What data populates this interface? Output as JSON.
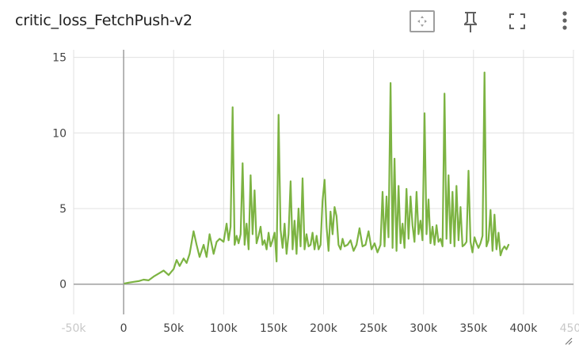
{
  "title": "critic_loss_FetchPush-v2",
  "toolbar": {
    "icons": [
      "fit-domain-icon",
      "pin-icon",
      "fullscreen-icon",
      "more-vert-icon"
    ]
  },
  "colors": {
    "line": "#7cb342",
    "grid": "#e0e0e0",
    "axis": "#9e9e9e"
  },
  "chart_data": {
    "type": "line",
    "title": "",
    "xlabel": "",
    "ylabel": "",
    "xlim": [
      -50000,
      450000
    ],
    "ylim": [
      -2,
      15.5
    ],
    "grid": true,
    "x_ticks": [
      {
        "value": -50000,
        "label": "-50k"
      },
      {
        "value": 0,
        "label": "0"
      },
      {
        "value": 50000,
        "label": "50k"
      },
      {
        "value": 100000,
        "label": "100k"
      },
      {
        "value": 150000,
        "label": "150k"
      },
      {
        "value": 200000,
        "label": "200k"
      },
      {
        "value": 250000,
        "label": "250k"
      },
      {
        "value": 300000,
        "label": "300k"
      },
      {
        "value": 350000,
        "label": "350k"
      },
      {
        "value": 400000,
        "label": "400k"
      },
      {
        "value": 450000,
        "label": "450k"
      }
    ],
    "y_ticks": [
      {
        "value": 0,
        "label": "0"
      },
      {
        "value": 5,
        "label": "5"
      },
      {
        "value": 10,
        "label": "10"
      },
      {
        "value": 15,
        "label": "15"
      }
    ],
    "series": [
      {
        "x": [
          1000,
          5000,
          10000,
          15000,
          20000,
          25000,
          30000,
          35000,
          40000,
          45000,
          50000,
          53000,
          56000,
          60000,
          63000,
          66000,
          70000,
          73000,
          76000,
          80000,
          83000,
          86000,
          90000,
          93000,
          96000,
          100000,
          103000,
          105000,
          107000,
          109000,
          111000,
          113000,
          115000,
          117000,
          119000,
          121000,
          123000,
          125000,
          127000,
          129000,
          131000,
          133000,
          135000,
          137000,
          139000,
          141000,
          143000,
          145000,
          147000,
          149000,
          151000,
          153000,
          155000,
          157000,
          159000,
          161000,
          163000,
          165000,
          167000,
          169000,
          171000,
          173000,
          175000,
          177000,
          179000,
          181000,
          183000,
          185000,
          187000,
          189000,
          191000,
          193000,
          195000,
          197000,
          199000,
          201000,
          203000,
          205000,
          207000,
          209000,
          211000,
          213000,
          215000,
          217000,
          219000,
          221000,
          224000,
          227000,
          230000,
          233000,
          236000,
          239000,
          242000,
          245000,
          248000,
          251000,
          254000,
          257000,
          259000,
          261000,
          263000,
          265000,
          267000,
          269000,
          271000,
          273000,
          275000,
          277000,
          279000,
          281000,
          283000,
          285000,
          287000,
          289000,
          291000,
          293000,
          295000,
          297000,
          299000,
          301000,
          303000,
          305000,
          307000,
          309000,
          311000,
          313000,
          315000,
          317000,
          319000,
          321000,
          323000,
          325000,
          327000,
          329000,
          331000,
          333000,
          335000,
          337000,
          339000,
          341000,
          343000,
          345000,
          347000,
          349000,
          351000,
          353000,
          355000,
          357000,
          359000,
          361000,
          363000,
          365000,
          367000,
          369000,
          371000,
          373000,
          375000,
          377000,
          379000,
          381000,
          383000,
          385000
        ],
        "y": [
          0.05,
          0.1,
          0.15,
          0.2,
          0.3,
          0.25,
          0.5,
          0.7,
          0.9,
          0.6,
          1.0,
          1.6,
          1.2,
          1.7,
          1.4,
          2.0,
          3.5,
          2.6,
          1.8,
          2.6,
          1.8,
          3.3,
          2.0,
          2.8,
          3.0,
          2.8,
          4.0,
          2.9,
          3.8,
          11.7,
          2.6,
          3.2,
          2.7,
          3.3,
          8.0,
          2.6,
          4.0,
          2.3,
          7.2,
          3.3,
          6.2,
          2.7,
          3.2,
          3.8,
          2.6,
          2.9,
          2.3,
          3.4,
          2.5,
          2.9,
          3.4,
          1.5,
          11.2,
          3.6,
          2.4,
          4.0,
          2.0,
          3.3,
          6.8,
          2.3,
          4.2,
          2.0,
          5.0,
          2.5,
          7.0,
          2.3,
          3.3,
          2.5,
          2.6,
          3.4,
          2.3,
          3.2,
          2.3,
          2.6,
          5.5,
          6.9,
          3.8,
          2.2,
          4.8,
          3.3,
          5.1,
          4.5,
          2.6,
          2.3,
          3.0,
          2.5,
          2.6,
          2.9,
          2.2,
          2.6,
          3.7,
          2.5,
          2.6,
          3.5,
          2.3,
          2.7,
          2.1,
          2.6,
          6.1,
          2.5,
          5.8,
          3.1,
          13.3,
          2.4,
          8.3,
          2.2,
          6.5,
          2.7,
          4.0,
          2.4,
          6.3,
          3.0,
          5.8,
          3.9,
          2.8,
          6.1,
          3.3,
          4.2,
          2.9,
          11.3,
          3.3,
          5.6,
          2.7,
          3.8,
          2.6,
          3.9,
          2.8,
          3.0,
          2.5,
          12.6,
          3.0,
          7.2,
          2.7,
          6.1,
          2.5,
          6.5,
          2.9,
          5.1,
          2.5,
          2.6,
          2.8,
          7.5,
          2.8,
          2.1,
          3.1,
          2.7,
          2.4,
          2.7,
          3.2,
          14.0,
          2.5,
          2.9,
          4.9,
          2.2,
          4.6,
          2.3,
          3.4,
          1.9,
          2.3,
          2.5,
          2.3,
          2.6
        ]
      }
    ]
  }
}
